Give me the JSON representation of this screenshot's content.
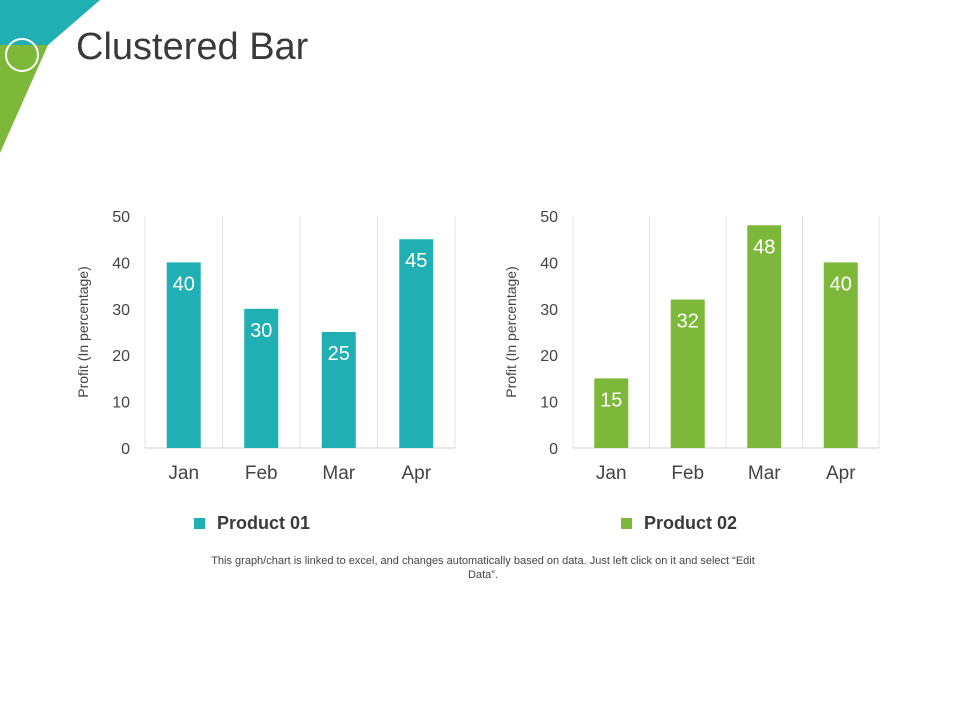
{
  "title": "Clustered Bar",
  "colors": {
    "product1": "#20b0b3",
    "product2": "#7db83a",
    "grid": "#e3e3e3",
    "text": "#444444"
  },
  "note": "This graph/chart is linked to excel, and changes automatically based on data. Just left click on it and select “Edit Data”.",
  "chart_data": [
    {
      "type": "bar",
      "categories": [
        "Jan",
        "Feb",
        "Mar",
        "Apr"
      ],
      "values": [
        40,
        30,
        25,
        45
      ],
      "series_name": "Product 01",
      "ylabel": "Profit  (In percentage)",
      "xlabel": "",
      "ylim": [
        0,
        50
      ],
      "yticks": [
        0,
        10,
        20,
        30,
        40,
        50
      ],
      "color": "#20b0b3"
    },
    {
      "type": "bar",
      "categories": [
        "Jan",
        "Feb",
        "Mar",
        "Apr"
      ],
      "values": [
        15,
        32,
        48,
        40
      ],
      "series_name": "Product 02",
      "ylabel": "Profit  (In percentage)",
      "xlabel": "",
      "ylim": [
        0,
        50
      ],
      "yticks": [
        0,
        10,
        20,
        30,
        40,
        50
      ],
      "color": "#7db83a"
    }
  ]
}
